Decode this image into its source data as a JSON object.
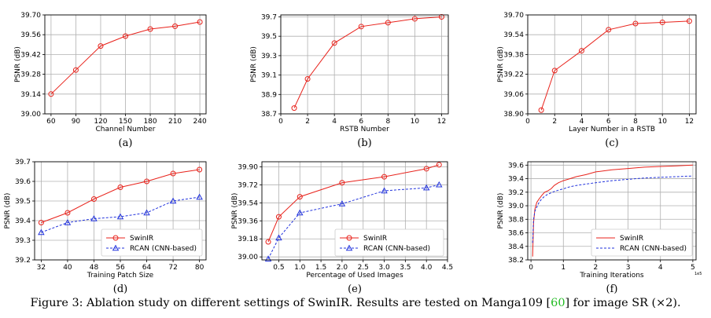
{
  "caption": {
    "prefix": "Figure 3: Ablation study on different settings of SwinIR. Results are tested on Manga109 [",
    "ref": "60",
    "suffix": "] for imag",
    "tail": "e SR (×2)."
  },
  "colors": {
    "swinir": "#e8221b",
    "rcan": "#2233dd"
  },
  "chart_data": [
    {
      "id": "a",
      "sublabel": "(a)",
      "type": "line",
      "xlabel": "Channel Number",
      "ylabel": "PSNR (dB)",
      "xlim": [
        52.5,
        247.5
      ],
      "ylim": [
        39.0,
        39.7
      ],
      "xticks": [
        60,
        90,
        120,
        150,
        180,
        210,
        240
      ],
      "yticks": [
        39.0,
        39.14,
        39.28,
        39.42,
        39.56,
        39.7
      ],
      "ytick_labels": [
        "39.00",
        "39.14",
        "39.28",
        "39.42",
        "39.56",
        "39.70"
      ],
      "series": [
        {
          "name": "SwinIR",
          "color": "swinir",
          "marker": "circle",
          "x": [
            60,
            90,
            120,
            150,
            180,
            210,
            240
          ],
          "y": [
            39.14,
            39.31,
            39.48,
            39.55,
            39.6,
            39.62,
            39.65
          ]
        }
      ]
    },
    {
      "id": "b",
      "sublabel": "(b)",
      "type": "line",
      "xlabel": "RSTB Number",
      "ylabel": "PSNR (dB)",
      "xlim": [
        0,
        12.5
      ],
      "ylim": [
        38.7,
        39.72
      ],
      "xticks": [
        0,
        2,
        4,
        6,
        8,
        10,
        12
      ],
      "yticks": [
        38.7,
        38.9,
        39.1,
        39.3,
        39.5,
        39.7
      ],
      "ytick_labels": [
        "38.7",
        "38.9",
        "39.1",
        "39.3",
        "39.5",
        "39.7"
      ],
      "series": [
        {
          "name": "SwinIR",
          "color": "swinir",
          "marker": "circle",
          "x": [
            1,
            2,
            4,
            6,
            8,
            10,
            12
          ],
          "y": [
            38.76,
            39.06,
            39.43,
            39.6,
            39.64,
            39.68,
            39.7
          ]
        }
      ]
    },
    {
      "id": "c",
      "sublabel": "(c)",
      "type": "line",
      "xlabel": "Layer Number in a RSTB",
      "ylabel": "PSNR (dB)",
      "xlim": [
        0,
        12.5
      ],
      "ylim": [
        38.9,
        39.7
      ],
      "xticks": [
        0,
        2,
        4,
        6,
        8,
        10,
        12
      ],
      "yticks": [
        38.9,
        39.06,
        39.22,
        39.38,
        39.54,
        39.7
      ],
      "ytick_labels": [
        "38.90",
        "39.06",
        "39.22",
        "39.38",
        "39.54",
        "39.70"
      ],
      "series": [
        {
          "name": "SwinIR",
          "color": "swinir",
          "marker": "circle",
          "x": [
            1,
            2,
            4,
            6,
            8,
            10,
            12
          ],
          "y": [
            38.93,
            39.25,
            39.41,
            39.58,
            39.63,
            39.64,
            39.65
          ]
        }
      ]
    },
    {
      "id": "d",
      "sublabel": "(d)",
      "type": "line",
      "xlabel": "Training Patch Size",
      "ylabel": "PSNR (dB)",
      "xlim": [
        30,
        82
      ],
      "ylim": [
        39.2,
        39.7
      ],
      "xticks": [
        32,
        40,
        48,
        56,
        64,
        72,
        80
      ],
      "yticks": [
        39.2,
        39.3,
        39.4,
        39.5,
        39.6,
        39.7
      ],
      "ytick_labels": [
        "39.2",
        "39.3",
        "39.4",
        "39.5",
        "39.6",
        "39.7"
      ],
      "legend": "lower-right",
      "series": [
        {
          "name": "SwinIR",
          "color": "swinir",
          "marker": "circle",
          "dash": false,
          "x": [
            32,
            40,
            48,
            56,
            64,
            72,
            80
          ],
          "y": [
            39.39,
            39.44,
            39.51,
            39.57,
            39.6,
            39.64,
            39.66
          ]
        },
        {
          "name": "RCAN (CNN-based)",
          "color": "rcan",
          "marker": "triangle",
          "dash": true,
          "x": [
            32,
            40,
            48,
            56,
            64,
            72,
            80
          ],
          "y": [
            39.34,
            39.39,
            39.41,
            39.42,
            39.44,
            39.5,
            39.52
          ]
        }
      ]
    },
    {
      "id": "e",
      "sublabel": "(e)",
      "type": "line",
      "xlabel": "Percentage of Used Images",
      "ylabel": "PSNR (dB)",
      "xlim": [
        0.1,
        4.5
      ],
      "ylim": [
        38.97,
        39.95
      ],
      "xticks": [
        0.5,
        1.0,
        1.5,
        2.0,
        2.5,
        3.0,
        3.5,
        4.0,
        4.5
      ],
      "xtick_labels": [
        "0.5",
        "1.0",
        "1.5",
        "2.0",
        "2.5",
        "3.0",
        "3.5",
        "4.0",
        "4.5"
      ],
      "yticks": [
        39.0,
        39.18,
        39.36,
        39.54,
        39.72,
        39.9
      ],
      "ytick_labels": [
        "39.00",
        "39.18",
        "39.36",
        "39.54",
        "39.72",
        "39.90"
      ],
      "legend": "lower-right",
      "series": [
        {
          "name": "SwinIR",
          "color": "swinir",
          "marker": "circle",
          "dash": false,
          "x": [
            0.25,
            0.5,
            1.0,
            2.0,
            3.0,
            4.0,
            4.3
          ],
          "y": [
            39.15,
            39.4,
            39.6,
            39.74,
            39.8,
            39.88,
            39.92
          ]
        },
        {
          "name": "RCAN (CNN-based)",
          "color": "rcan",
          "marker": "triangle",
          "dash": true,
          "x": [
            0.25,
            0.5,
            1.0,
            2.0,
            3.0,
            4.0,
            4.3
          ],
          "y": [
            38.98,
            39.19,
            39.44,
            39.53,
            39.66,
            39.69,
            39.72
          ]
        }
      ]
    },
    {
      "id": "f",
      "sublabel": "(f)",
      "type": "line",
      "xlabel": "Training Iterations",
      "ylabel": "PSNR (dB)",
      "x_offset_label": "1e5",
      "xlim": [
        -0.1,
        5.1
      ],
      "ylim": [
        38.2,
        39.65
      ],
      "xticks": [
        0,
        1,
        2,
        3,
        4,
        5
      ],
      "yticks": [
        38.2,
        38.4,
        38.6,
        38.8,
        39.0,
        39.2,
        39.4,
        39.6
      ],
      "ytick_labels": [
        "38.2",
        "38.4",
        "38.6",
        "38.8",
        "39.0",
        "39.2",
        "39.4",
        "39.6"
      ],
      "legend": "lower-right",
      "series": [
        {
          "name": "SwinIR",
          "color": "swinir",
          "marker": "none",
          "dash": false,
          "x": [
            0.05,
            0.08,
            0.12,
            0.18,
            0.25,
            0.33,
            0.42,
            0.52,
            0.62,
            0.72,
            0.85,
            1.0,
            1.2,
            1.4,
            1.7,
            2.0,
            2.5,
            3.0,
            3.5,
            4.0,
            4.5,
            5.0
          ],
          "y": [
            38.25,
            38.75,
            38.95,
            39.05,
            39.1,
            39.15,
            39.2,
            39.22,
            39.25,
            39.3,
            39.34,
            39.37,
            39.4,
            39.43,
            39.46,
            39.5,
            39.53,
            39.55,
            39.57,
            39.58,
            39.59,
            39.6
          ]
        },
        {
          "name": "RCAN (CNN-based)",
          "color": "rcan",
          "marker": "none",
          "dash": true,
          "x": [
            0.05,
            0.08,
            0.12,
            0.18,
            0.25,
            0.33,
            0.42,
            0.52,
            0.62,
            0.72,
            0.85,
            1.0,
            1.2,
            1.4,
            1.7,
            2.0,
            2.5,
            3.0,
            3.5,
            4.0,
            4.5,
            5.0
          ],
          "y": [
            38.45,
            38.8,
            38.92,
            38.98,
            39.05,
            39.1,
            39.14,
            39.17,
            39.19,
            39.21,
            39.23,
            39.25,
            39.28,
            39.3,
            39.32,
            39.34,
            39.37,
            39.39,
            39.41,
            39.42,
            39.43,
            39.44
          ]
        }
      ]
    }
  ]
}
